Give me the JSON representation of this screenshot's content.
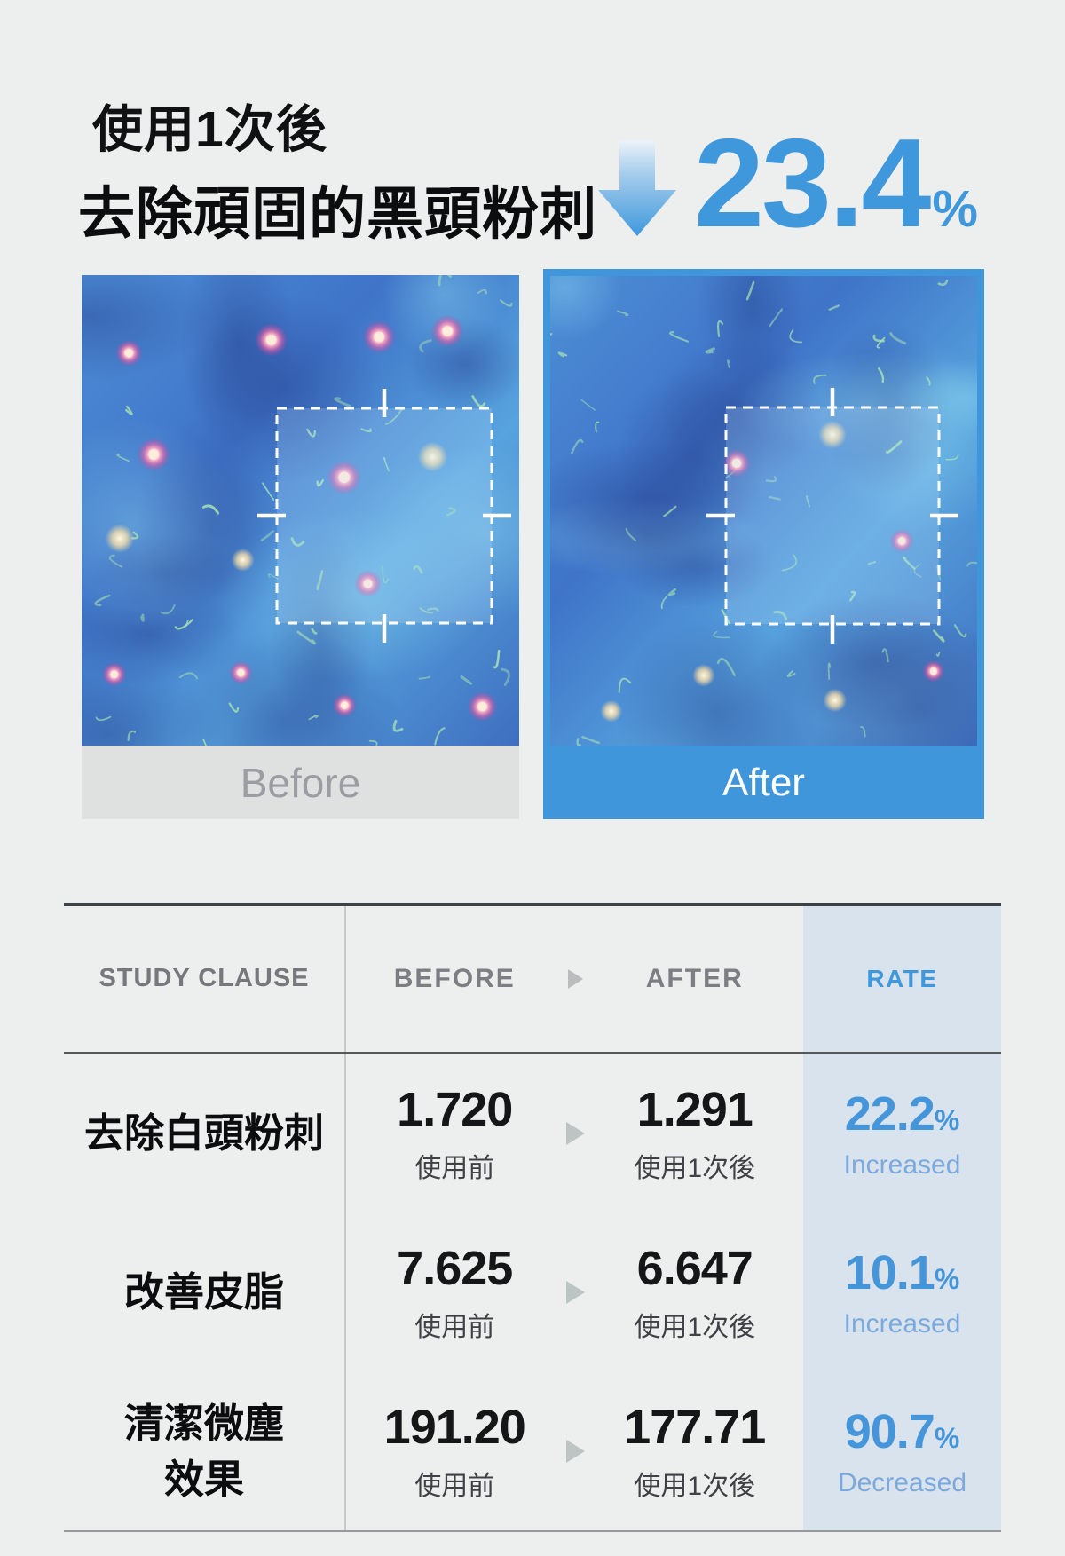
{
  "colors": {
    "page_bg": "#edeeee",
    "accent_blue": "#3f98dc",
    "rate_value_blue": "#4595da",
    "rate_caption_blue": "#7ca9dc",
    "rate_column_bg": "#d9e3ee",
    "before_bar_bg": "#dfe0e0",
    "before_bar_text": "#9a9ea2",
    "after_bar_bg": "#3f96da",
    "table_top_border": "#3d4247"
  },
  "header": {
    "line1": "使用1次後",
    "line2": "去除頑固的黑頭粉刺",
    "stat_value": "23.4",
    "stat_unit": "%"
  },
  "comparison": {
    "before_label": "Before",
    "after_label": "After"
  },
  "table": {
    "headers": {
      "study_line1": "STUDY",
      "study_line2": "CLAUSE",
      "before": "BEFORE",
      "after": "AFTER",
      "rate": "RATE"
    },
    "rows": [
      {
        "label": "去除白頭粉刺",
        "label2": "",
        "before_value": "1.720",
        "before_caption": "使用前",
        "after_value": "1.291",
        "after_caption": "使用1次後",
        "rate_value": "22.2",
        "rate_unit": "%",
        "rate_caption": "Increased"
      },
      {
        "label": "改善皮脂",
        "label2": "",
        "before_value": "7.625",
        "before_caption": "使用前",
        "after_value": "6.647",
        "after_caption": "使用1次後",
        "rate_value": "10.1",
        "rate_unit": "%",
        "rate_caption": "Increased"
      },
      {
        "label": "清潔微塵",
        "label2": "效果",
        "before_value": "191.20",
        "before_caption": "使用前",
        "after_value": "177.71",
        "after_caption": "使用1次後",
        "rate_value": "90.7",
        "rate_unit": "%",
        "rate_caption": "Decreased"
      }
    ]
  }
}
